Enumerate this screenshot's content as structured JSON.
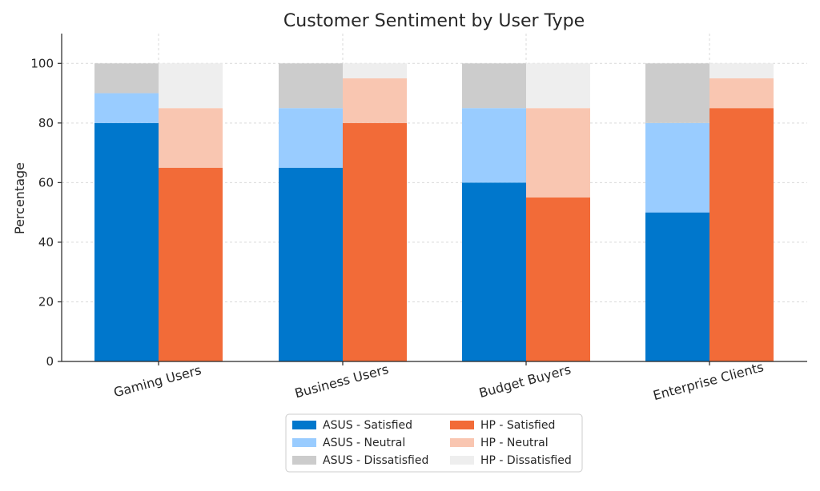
{
  "chart_data": {
    "type": "bar",
    "title": "Customer Sentiment by User Type",
    "ylabel": "Percentage",
    "xlabel": "",
    "ylim": [
      0,
      110
    ],
    "yticks": [
      0,
      20,
      40,
      60,
      80,
      100
    ],
    "grid": true,
    "stacked": true,
    "legend_position": "bottom-center",
    "categories": [
      "Gaming Users",
      "Business Users",
      "Budget Buyers",
      "Enterprise Clients"
    ],
    "groups": [
      {
        "brand": "ASUS",
        "series": [
          {
            "name": "ASUS - Satisfied",
            "color": "#0077cc",
            "values": [
              80,
              65,
              60,
              50
            ]
          },
          {
            "name": "ASUS - Neutral",
            "color": "#99ccff",
            "values": [
              10,
              20,
              25,
              30
            ]
          },
          {
            "name": "ASUS - Dissatisfied",
            "color": "#cccccc",
            "values": [
              10,
              15,
              15,
              20
            ]
          }
        ]
      },
      {
        "brand": "HP",
        "series": [
          {
            "name": "HP - Satisfied",
            "color": "#f26b38",
            "values": [
              65,
              80,
              55,
              85
            ]
          },
          {
            "name": "HP - Neutral",
            "color": "#f9c6b1",
            "values": [
              20,
              15,
              30,
              10
            ]
          },
          {
            "name": "HP - Dissatisfied",
            "color": "#eeeeee",
            "values": [
              15,
              5,
              15,
              5
            ]
          }
        ]
      }
    ]
  }
}
